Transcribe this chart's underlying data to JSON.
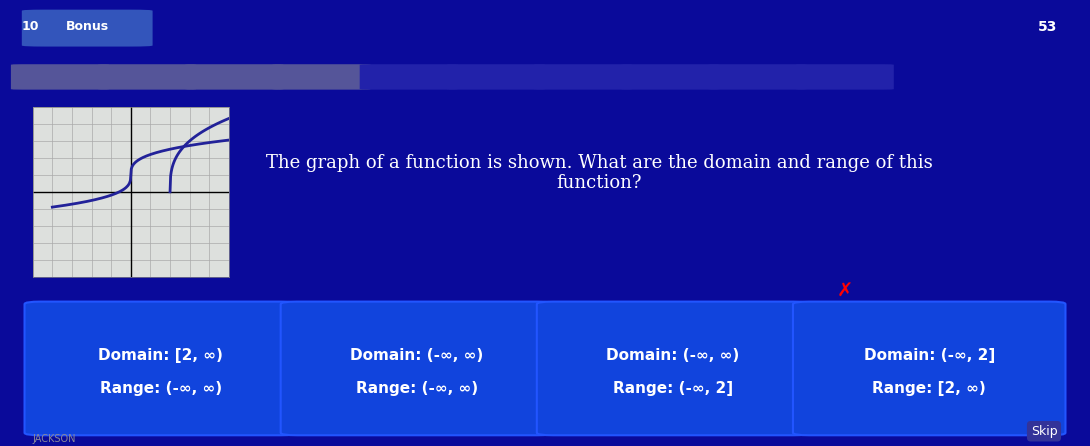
{
  "bg_color_top": "#1a1a2e",
  "bg_color_main": "#0a0a8a",
  "header_bg": "#1a1a3e",
  "title_bar_color": "#0000cc",
  "bonus_tag_color": "#3344aa",
  "question_text": "The graph of a function is shown. What are the domain and range of this\nfunction?",
  "question_text_color": "#ffffff",
  "question_font_size": 13,
  "answers": [
    {
      "domain": "Domain: [2, ∞)",
      "range": "Range: (-∞, ∞)"
    },
    {
      "domain": "Domain: (-∞, ∞)",
      "range": "Range: (-∞, ∞)"
    },
    {
      "domain": "Domain: (-∞, ∞)",
      "range": "Range: (-∞, 2]"
    },
    {
      "domain": "Domain: (-∞, 2]",
      "range": "Range: [2, ∞)"
    }
  ],
  "answer_card_color": "#1144dd",
  "answer_card_selected_color": "#1144dd",
  "answer_text_color": "#ffffff",
  "answer_font_size": 11,
  "graph_bg": "#e8e8e8",
  "skip_text": "Skip",
  "header_text": "10   Bonus",
  "score_text": "53"
}
